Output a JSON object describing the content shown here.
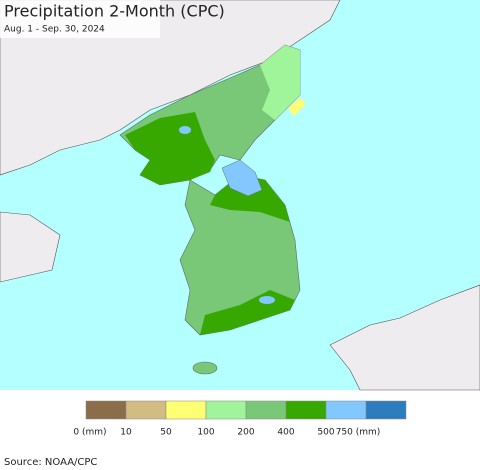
{
  "header": {
    "title": "Precipitation 2-Month (CPC)",
    "subtitle": "Aug. 1 - Sep. 30, 2024"
  },
  "legend": {
    "colors": [
      "#8c6d4a",
      "#d2bc82",
      "#ffff73",
      "#a0f59a",
      "#78c878",
      "#37a800",
      "#82c8ff",
      "#2d7dbe"
    ],
    "labels": [
      "0 (mm)",
      "10",
      "50",
      "100",
      "200",
      "400",
      "500",
      "750 (mm)"
    ]
  },
  "source": "Source: NOAA/CPC"
}
